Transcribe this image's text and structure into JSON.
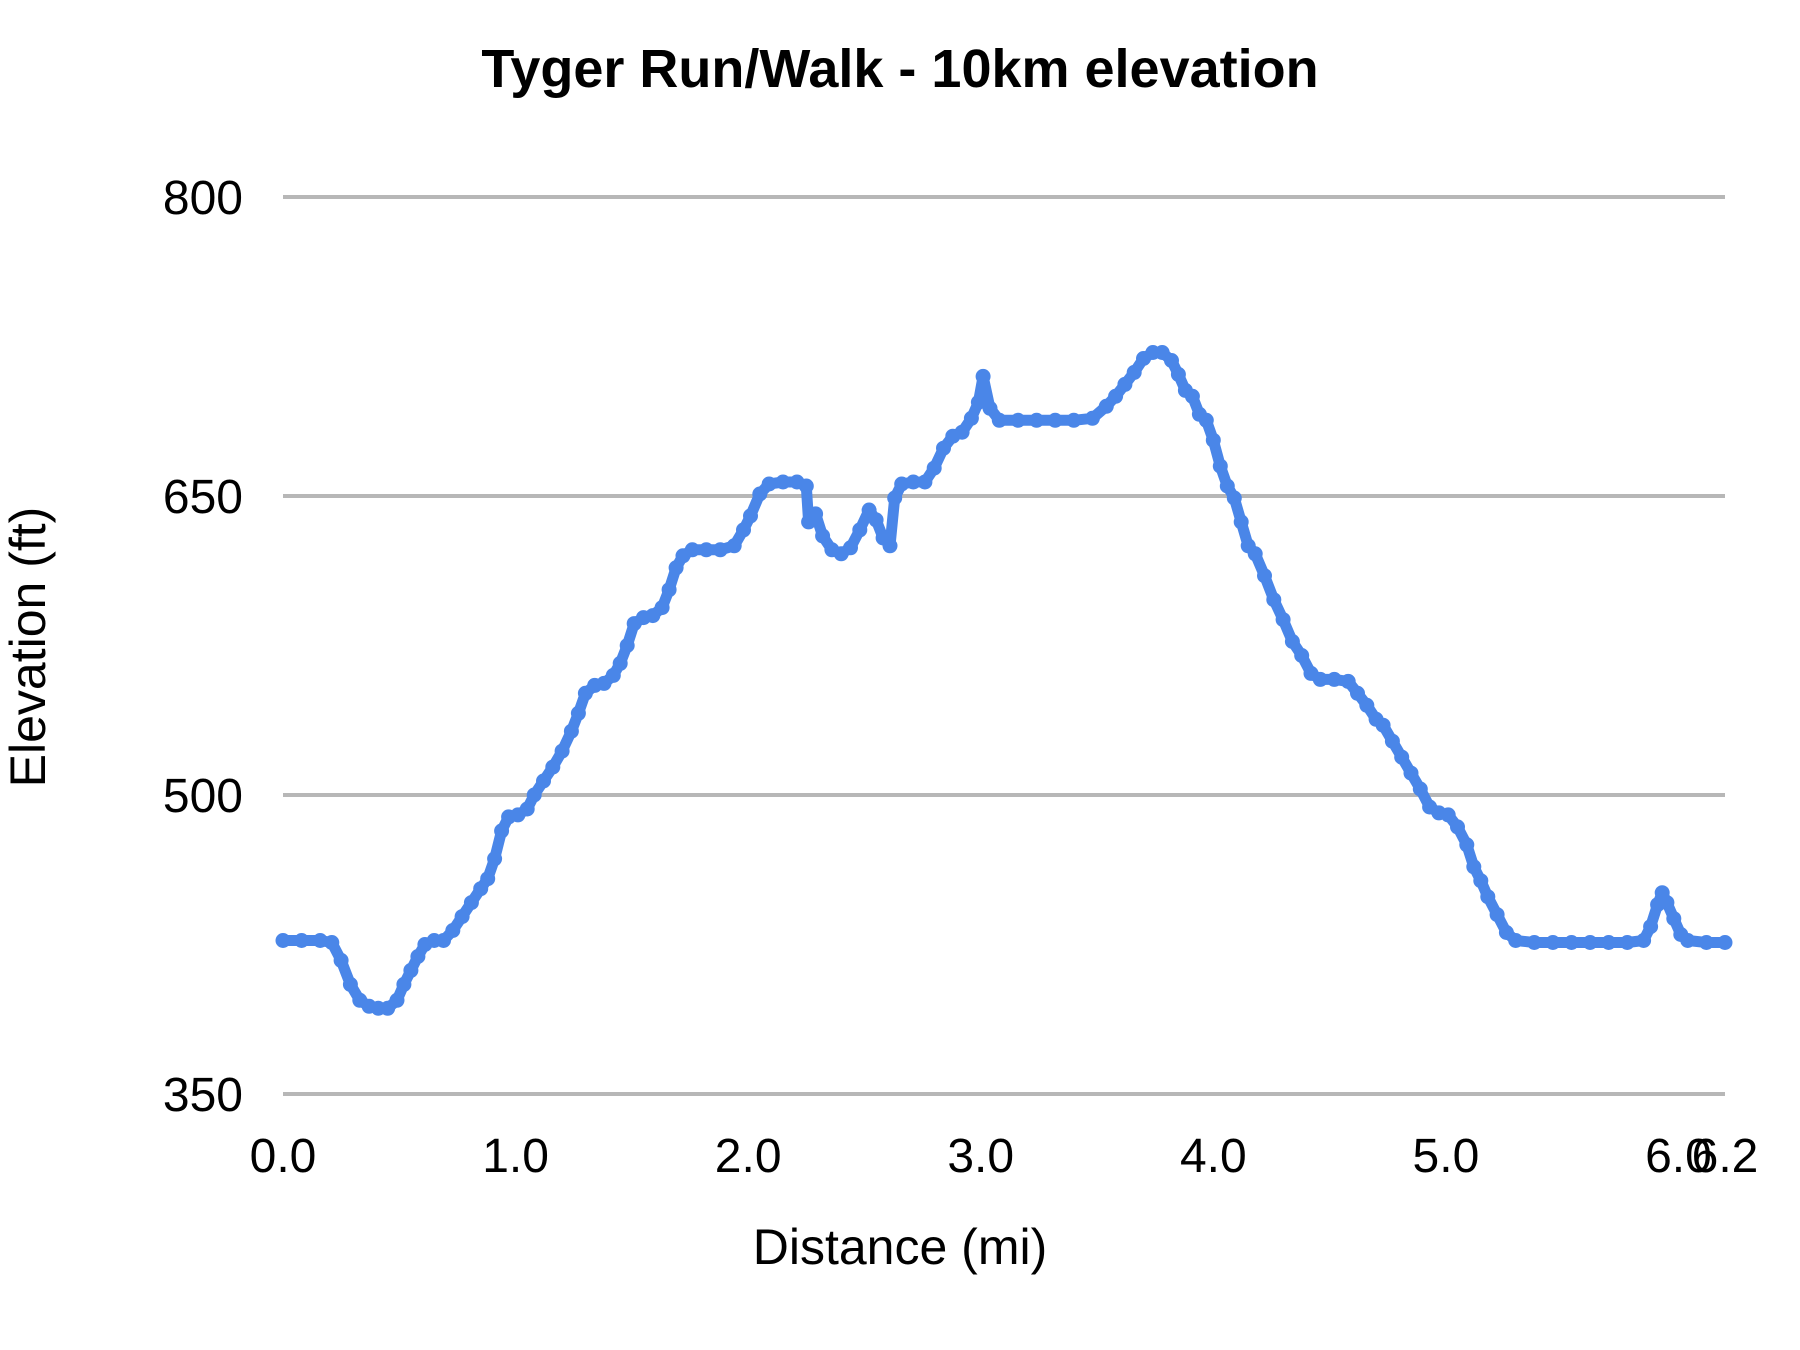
{
  "chart_data": {
    "type": "line",
    "title": "Tyger Run/Walk - 10km elevation",
    "xlabel": "Distance (mi)",
    "ylabel": "Elevation (ft)",
    "xlim": [
      0,
      6.2
    ],
    "ylim": [
      350,
      800
    ],
    "grid": "horizontal-only",
    "legend_position": "none",
    "colors": {
      "line": "#4a86e8",
      "gridline": "#b7b7b7",
      "text": "#000000",
      "background": "#ffffff"
    },
    "x_ticks": [
      {
        "value": 0.0,
        "label": "0.0"
      },
      {
        "value": 1.0,
        "label": "1.0"
      },
      {
        "value": 2.0,
        "label": "2.0"
      },
      {
        "value": 3.0,
        "label": "3.0"
      },
      {
        "value": 4.0,
        "label": "4.0"
      },
      {
        "value": 5.0,
        "label": "5.0"
      },
      {
        "value": 6.0,
        "label": "6.0"
      },
      {
        "value": 6.2,
        "label": "6.2"
      }
    ],
    "y_ticks": [
      {
        "value": 350,
        "label": "350"
      },
      {
        "value": 500,
        "label": "500"
      },
      {
        "value": 650,
        "label": "650"
      },
      {
        "value": 800,
        "label": "800"
      }
    ],
    "series": [
      {
        "name": "Elevation",
        "marker": "circle",
        "points": [
          [
            0.0,
            427
          ],
          [
            0.08,
            427
          ],
          [
            0.16,
            427
          ],
          [
            0.21,
            426
          ],
          [
            0.25,
            417
          ],
          [
            0.29,
            405
          ],
          [
            0.33,
            397
          ],
          [
            0.37,
            394
          ],
          [
            0.41,
            393
          ],
          [
            0.45,
            393
          ],
          [
            0.49,
            397
          ],
          [
            0.52,
            405
          ],
          [
            0.55,
            412
          ],
          [
            0.58,
            419
          ],
          [
            0.61,
            425
          ],
          [
            0.65,
            427
          ],
          [
            0.69,
            427
          ],
          [
            0.73,
            432
          ],
          [
            0.77,
            439
          ],
          [
            0.81,
            446
          ],
          [
            0.85,
            453
          ],
          [
            0.88,
            458
          ],
          [
            0.91,
            468
          ],
          [
            0.94,
            482
          ],
          [
            0.97,
            489
          ],
          [
            1.01,
            490
          ],
          [
            1.05,
            493
          ],
          [
            1.08,
            500
          ],
          [
            1.12,
            507
          ],
          [
            1.16,
            514
          ],
          [
            1.2,
            522
          ],
          [
            1.24,
            532
          ],
          [
            1.27,
            541
          ],
          [
            1.3,
            551
          ],
          [
            1.34,
            555
          ],
          [
            1.38,
            556
          ],
          [
            1.42,
            560
          ],
          [
            1.45,
            566
          ],
          [
            1.48,
            575
          ],
          [
            1.51,
            586
          ],
          [
            1.55,
            589
          ],
          [
            1.59,
            590
          ],
          [
            1.63,
            594
          ],
          [
            1.66,
            603
          ],
          [
            1.69,
            614
          ],
          [
            1.72,
            620
          ],
          [
            1.76,
            623
          ],
          [
            1.82,
            623
          ],
          [
            1.88,
            623
          ],
          [
            1.94,
            625
          ],
          [
            1.98,
            633
          ],
          [
            2.01,
            640
          ],
          [
            2.05,
            651
          ],
          [
            2.09,
            656
          ],
          [
            2.15,
            657
          ],
          [
            2.21,
            657
          ],
          [
            2.25,
            655
          ],
          [
            2.26,
            637
          ],
          [
            2.29,
            641
          ],
          [
            2.32,
            630
          ],
          [
            2.36,
            623
          ],
          [
            2.4,
            621
          ],
          [
            2.44,
            624
          ],
          [
            2.48,
            633
          ],
          [
            2.52,
            643
          ],
          [
            2.55,
            638
          ],
          [
            2.58,
            629
          ],
          [
            2.61,
            625
          ],
          [
            2.63,
            649
          ],
          [
            2.66,
            656
          ],
          [
            2.71,
            657
          ],
          [
            2.76,
            657
          ],
          [
            2.8,
            664
          ],
          [
            2.84,
            674
          ],
          [
            2.88,
            680
          ],
          [
            2.92,
            682
          ],
          [
            2.96,
            689
          ],
          [
            2.99,
            697
          ],
          [
            3.01,
            710
          ],
          [
            3.04,
            694
          ],
          [
            3.08,
            688
          ],
          [
            3.16,
            688
          ],
          [
            3.24,
            688
          ],
          [
            3.32,
            688
          ],
          [
            3.4,
            688
          ],
          [
            3.48,
            689
          ],
          [
            3.54,
            695
          ],
          [
            3.58,
            700
          ],
          [
            3.62,
            706
          ],
          [
            3.66,
            712
          ],
          [
            3.7,
            719
          ],
          [
            3.74,
            722
          ],
          [
            3.78,
            722
          ],
          [
            3.82,
            718
          ],
          [
            3.85,
            711
          ],
          [
            3.88,
            703
          ],
          [
            3.91,
            700
          ],
          [
            3.94,
            691
          ],
          [
            3.97,
            688
          ],
          [
            4.0,
            678
          ],
          [
            4.03,
            665
          ],
          [
            4.06,
            655
          ],
          [
            4.09,
            649
          ],
          [
            4.12,
            637
          ],
          [
            4.15,
            625
          ],
          [
            4.18,
            621
          ],
          [
            4.22,
            610
          ],
          [
            4.26,
            598
          ],
          [
            4.3,
            588
          ],
          [
            4.34,
            577
          ],
          [
            4.38,
            570
          ],
          [
            4.42,
            561
          ],
          [
            4.46,
            558
          ],
          [
            4.52,
            558
          ],
          [
            4.58,
            557
          ],
          [
            4.62,
            551
          ],
          [
            4.66,
            545
          ],
          [
            4.7,
            538
          ],
          [
            4.73,
            535
          ],
          [
            4.77,
            527
          ],
          [
            4.81,
            519
          ],
          [
            4.85,
            511
          ],
          [
            4.89,
            503
          ],
          [
            4.93,
            494
          ],
          [
            4.97,
            491
          ],
          [
            5.01,
            490
          ],
          [
            5.05,
            484
          ],
          [
            5.09,
            475
          ],
          [
            5.12,
            464
          ],
          [
            5.15,
            457
          ],
          [
            5.18,
            449
          ],
          [
            5.22,
            440
          ],
          [
            5.26,
            431
          ],
          [
            5.3,
            427
          ],
          [
            5.38,
            426
          ],
          [
            5.46,
            426
          ],
          [
            5.54,
            426
          ],
          [
            5.62,
            426
          ],
          [
            5.7,
            426
          ],
          [
            5.78,
            426
          ],
          [
            5.85,
            427
          ],
          [
            5.88,
            434
          ],
          [
            5.91,
            445
          ],
          [
            5.93,
            451
          ],
          [
            5.95,
            446
          ],
          [
            5.98,
            438
          ],
          [
            6.01,
            430
          ],
          [
            6.04,
            427
          ],
          [
            6.12,
            426
          ],
          [
            6.2,
            426
          ]
        ]
      }
    ]
  }
}
